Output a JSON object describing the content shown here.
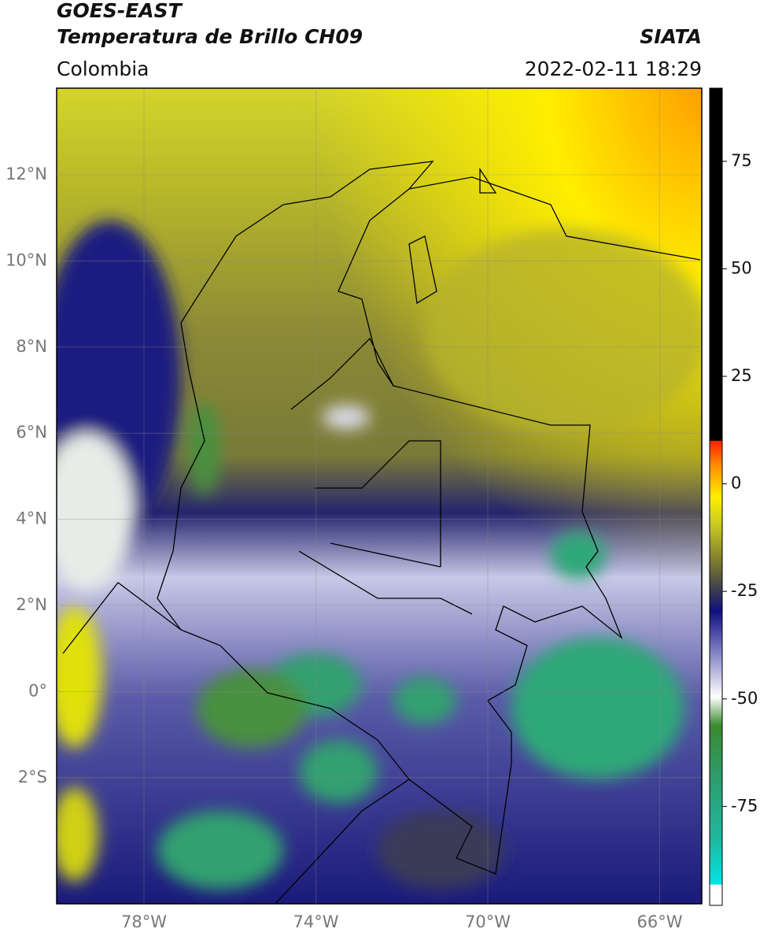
{
  "header": {
    "title": "GOES-EAST",
    "subtitle": "Temperatura de Brillo CH09",
    "region": "Colombia",
    "source": "SIATA",
    "datetime": "2022-02-11 18:29"
  },
  "map": {
    "lat_labels": [
      "12°N",
      "10°N",
      "8°N",
      "6°N",
      "4°N",
      "2°N",
      "0°",
      "2°S"
    ],
    "lon_labels": [
      "78°W",
      "74°W",
      "70°W",
      "66°W"
    ]
  },
  "colorbar": {
    "range": [
      -98,
      92
    ],
    "ticks": [
      75,
      50,
      25,
      0,
      -25,
      -50,
      -75
    ]
  }
}
